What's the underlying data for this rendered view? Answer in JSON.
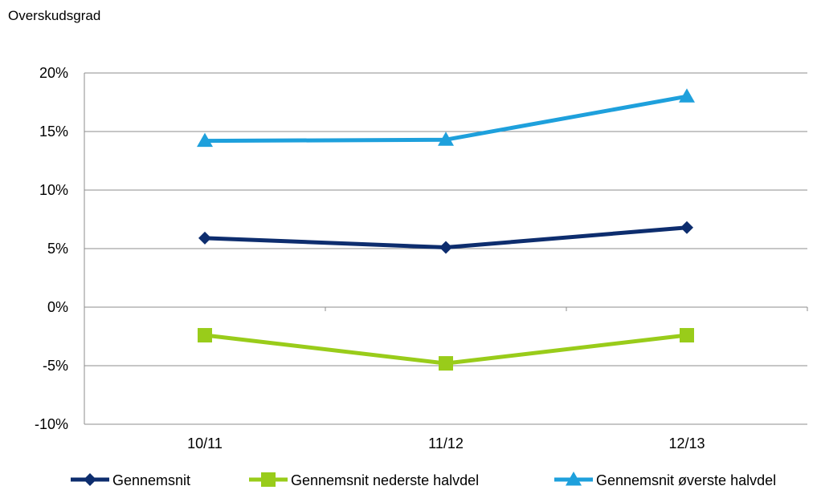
{
  "chart_data": {
    "type": "line",
    "title": "",
    "xlabel": "",
    "ylabel": "Overskudsgrad",
    "categories": [
      "10/11",
      "11/12",
      "12/13"
    ],
    "ylim": [
      -10,
      20
    ],
    "yticks": [
      -10,
      -5,
      0,
      5,
      10,
      15,
      20
    ],
    "ytick_labels": [
      "-10%",
      "-5%",
      "0%",
      "5%",
      "10%",
      "15%",
      "20%"
    ],
    "grid": true,
    "legend_position": "bottom",
    "series": [
      {
        "name": "Gennemsnit",
        "values": [
          5.9,
          5.1,
          6.8
        ],
        "color": "#0d2d6e",
        "marker": "diamond"
      },
      {
        "name": "Gennemsnit nederste halvdel",
        "values": [
          -2.4,
          -4.8,
          -2.4
        ],
        "color": "#99cc1a",
        "marker": "square"
      },
      {
        "name": "Gennemsnit øverste halvdel",
        "values": [
          14.2,
          14.3,
          18.0
        ],
        "color": "#1ea0dc",
        "marker": "triangle"
      }
    ]
  }
}
